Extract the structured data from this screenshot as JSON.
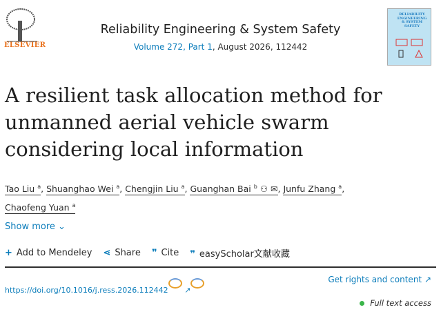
{
  "header": {
    "publisher": "ELSEVIER",
    "journal": "Reliability Engineering & System Safety",
    "volume_link": "Volume 272, Part 1",
    "issue_info": ", August 2026, 112442",
    "cover_title": "RELIABILITY ENGINEERING & SYSTEM SAFETY"
  },
  "article": {
    "title": "A resilient task allocation method for unmanned aerial vehicle swarm considering local information",
    "authors": [
      {
        "name": "Tao Liu",
        "aff": "a"
      },
      {
        "name": "Shuanghao Wei",
        "aff": "a"
      },
      {
        "name": "Chengjin Liu",
        "aff": "a"
      },
      {
        "name": "Guanghan Bai",
        "aff": "b"
      },
      {
        "name": "Junfu Zhang",
        "aff": "a"
      },
      {
        "name": "Chaofeng Yuan",
        "aff": "a"
      }
    ],
    "show_more": "Show more"
  },
  "actions": {
    "mendeley": "Add to Mendeley",
    "share": "Share",
    "cite": "Cite",
    "easyscholar": "easyScholar文献收藏"
  },
  "doi": "https://doi.org/10.1016/j.ress.2026.112442",
  "rights": "Get rights and content ↗",
  "access": "Full text access",
  "colors": {
    "link": "#0c7dbb",
    "brand": "#e9711c",
    "access": "#3ab54a"
  }
}
